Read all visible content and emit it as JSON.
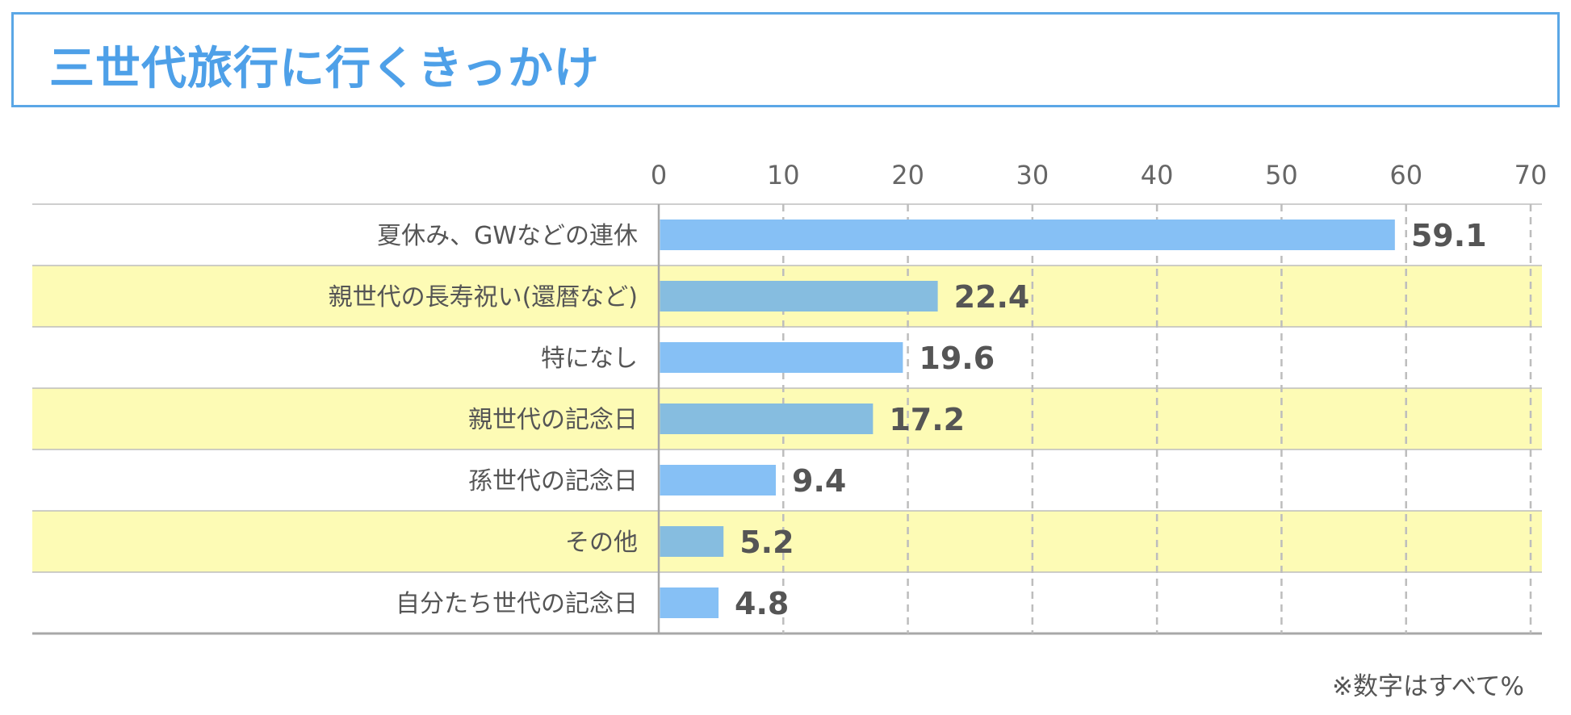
{
  "title": "三世代旅行に行くきっかけ",
  "note": "※数字はすべて%",
  "colors": {
    "accent": "#4ea0e8",
    "bar": "#86c0f5",
    "bar_on_highlight": "#86bde0",
    "highlight": "#fdfbb5",
    "text": "#555555"
  },
  "chart_data": {
    "type": "bar",
    "orientation": "horizontal",
    "title": "三世代旅行に行くきっかけ",
    "xlabel": "",
    "ylabel": "",
    "xlim": [
      0,
      70
    ],
    "ticks": [
      0,
      10,
      20,
      30,
      40,
      50,
      60,
      70
    ],
    "categories": [
      "夏休み、GWなどの連休",
      "親世代の長寿祝い(還暦など)",
      "特になし",
      "親世代の記念日",
      "孫世代の記念日",
      "その他",
      "自分たち世代の記念日"
    ],
    "values": [
      59.1,
      22.4,
      19.6,
      17.2,
      9.4,
      5.2,
      4.8
    ],
    "highlighted_rows": [
      false,
      true,
      false,
      true,
      false,
      true,
      false
    ],
    "grid": "vertical-dashed"
  }
}
